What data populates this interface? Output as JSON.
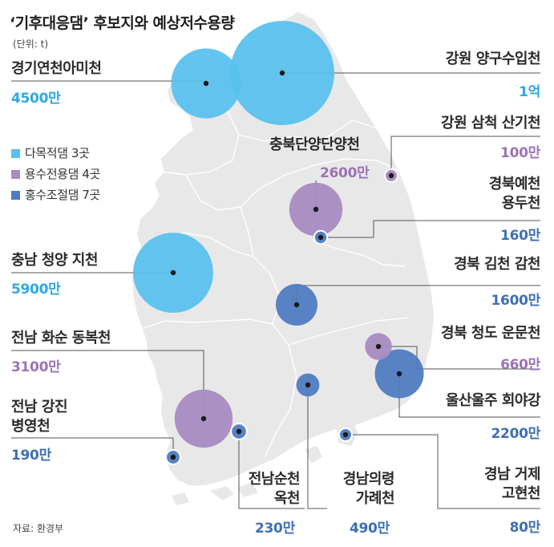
{
  "title": "‘기후대응댐’ 후보지와 예상저수용량",
  "unit_note": "(단위: t)",
  "source": "자료: 환경부",
  "legend": [
    {
      "label": "다목적댐 3곳",
      "type": "multi"
    },
    {
      "label": "용수전용댐 4곳",
      "type": "water"
    },
    {
      "label": "홍수조절댐 7곳",
      "type": "flood"
    }
  ],
  "colors": {
    "multi": "#56c0ee",
    "water": "#a88bc2",
    "flood": "#4f7cc2",
    "map_fill": "#e8e8e8",
    "map_border": "#ffffff",
    "leader": "#555555"
  },
  "sites": [
    {
      "id": "gyeonggi-yeoncheon",
      "name_lines": [
        "경기연천아미천"
      ],
      "value": "4500만",
      "capacity_t": 45000000,
      "type": "multi"
    },
    {
      "id": "gangwon-yanggu",
      "name_lines": [
        "강원 양구수입천"
      ],
      "value": "1억",
      "capacity_t": 100000000,
      "type": "multi"
    },
    {
      "id": "gangwon-samcheok",
      "name_lines": [
        "강원 삼척 산기천"
      ],
      "value": "100만",
      "capacity_t": 1000000,
      "type": "water"
    },
    {
      "id": "chungbuk-danyang",
      "name_lines": [
        "충북단양단양천"
      ],
      "value": "2600만",
      "capacity_t": 26000000,
      "type": "water"
    },
    {
      "id": "gyeongbuk-yecheon",
      "name_lines": [
        "경북예천",
        "용두천"
      ],
      "value": "160만",
      "capacity_t": 1600000,
      "type": "flood"
    },
    {
      "id": "chungnam-cheongyang",
      "name_lines": [
        "충남 청양 지천"
      ],
      "value": "5900만",
      "capacity_t": 59000000,
      "type": "multi"
    },
    {
      "id": "gyeongbuk-gimcheon",
      "name_lines": [
        "경북 김천 감천"
      ],
      "value": "1600만",
      "capacity_t": 16000000,
      "type": "flood"
    },
    {
      "id": "jeonnam-hwasun",
      "name_lines": [
        "전남 화순 동복천"
      ],
      "value": "3100만",
      "capacity_t": 31000000,
      "type": "water"
    },
    {
      "id": "gyeongbuk-cheongdo",
      "name_lines": [
        "경북 청도 운문천"
      ],
      "value": "660만",
      "capacity_t": 6600000,
      "type": "water"
    },
    {
      "id": "jeonnam-gangjin",
      "name_lines": [
        "전남 강진",
        "병영천"
      ],
      "value": "190만",
      "capacity_t": 1900000,
      "type": "flood"
    },
    {
      "id": "ulsan-ulju",
      "name_lines": [
        "울산울주 회야강"
      ],
      "value": "2200만",
      "capacity_t": 22000000,
      "type": "flood"
    },
    {
      "id": "jeonnam-suncheon",
      "name_lines": [
        "전남순천",
        "옥천"
      ],
      "value": "230만",
      "capacity_t": 2300000,
      "type": "flood"
    },
    {
      "id": "gyeongnam-uiryeong",
      "name_lines": [
        "경남의령",
        "가례천"
      ],
      "value": "490만",
      "capacity_t": 4900000,
      "type": "flood"
    },
    {
      "id": "gyeongnam-geoje",
      "name_lines": [
        "경남 거제",
        "고현천"
      ],
      "value": "80만",
      "capacity_t": 800000,
      "type": "flood"
    }
  ]
}
